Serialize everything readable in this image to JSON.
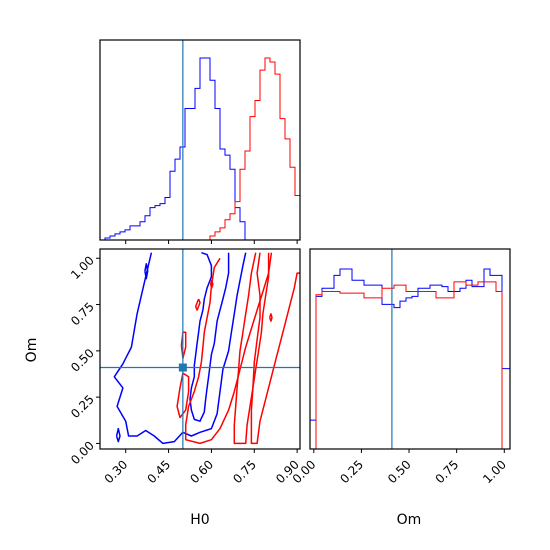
{
  "chart_data": {
    "type": "corner",
    "colors": {
      "sample_1": "#0000ff",
      "sample_2": "#ff0000",
      "truth": "#1f77b4"
    },
    "parameters": [
      "H0",
      "Om"
    ],
    "truths": {
      "H0": 0.5,
      "Om": 0.41
    },
    "h0_axis": {
      "label": "H0",
      "range": [
        0.21,
        0.91
      ],
      "ticks": [
        0.3,
        0.45,
        0.6,
        0.75,
        0.9
      ],
      "tick_labels": [
        "0.30",
        "0.45",
        "0.60",
        "0.75",
        "0.90"
      ]
    },
    "om_axis": {
      "label": "Om",
      "range": [
        -0.03,
        1.05
      ],
      "ticks": [
        0,
        0.25,
        0.5,
        0.75,
        1.0
      ],
      "tick_labels": [
        "0.00",
        "0.25",
        "0.50",
        "0.75",
        "1.00"
      ]
    },
    "om_hist_x_range": [
      -0.02,
      1.03
    ],
    "h0_hist": {
      "bin_edges": [
        0.21,
        0.2275,
        0.245,
        0.2625,
        0.28,
        0.2975,
        0.315,
        0.3325,
        0.35,
        0.3675,
        0.385,
        0.4025,
        0.42,
        0.4375,
        0.455,
        0.4725,
        0.49,
        0.5075,
        0.525,
        0.5425,
        0.56,
        0.5775,
        0.595,
        0.6125,
        0.63,
        0.6475,
        0.665,
        0.6825,
        0.7,
        0.7175,
        0.735,
        0.7525,
        0.77,
        0.7875,
        0.805,
        0.8225,
        0.84,
        0.8575,
        0.875,
        0.8925,
        0.91
      ],
      "series": [
        {
          "values": [
            0,
            1,
            2,
            3,
            4,
            5,
            7,
            7,
            9,
            12,
            16,
            17,
            18,
            21,
            34,
            40,
            46,
            65,
            65,
            75,
            90,
            90,
            79,
            65,
            45,
            42,
            35,
            16,
            9,
            0,
            0,
            0,
            0,
            0,
            0,
            0,
            0,
            0,
            0,
            0
          ]
        },
        {
          "values": [
            0,
            0,
            0,
            0,
            0,
            0,
            0,
            0,
            0,
            0,
            0,
            0,
            0,
            0,
            0,
            0,
            0,
            0,
            0,
            0,
            0,
            0,
            2,
            4,
            6,
            10,
            13,
            19,
            35,
            44,
            61,
            69,
            84,
            90,
            88,
            82,
            60,
            50,
            36,
            22
          ]
        }
      ]
    },
    "om_hist": {
      "bin_edges": [
        -0.02,
        0.0115,
        0.043,
        0.0745,
        0.106,
        0.1375,
        0.169,
        0.2005,
        0.232,
        0.2635,
        0.295,
        0.3265,
        0.358,
        0.3895,
        0.421,
        0.4525,
        0.484,
        0.5155,
        0.547,
        0.5785,
        0.61,
        0.6415,
        0.673,
        0.7045,
        0.736,
        0.7675,
        0.799,
        0.8305,
        0.862,
        0.8935,
        0.925,
        0.9565,
        0.988,
        1.0195,
        1.03
      ],
      "series": [
        {
          "values": [
            18,
            95,
            100,
            100,
            108,
            112,
            112,
            105,
            105,
            102,
            102,
            102,
            90,
            90,
            88,
            92,
            94,
            95,
            100,
            100,
            102,
            102,
            101,
            98,
            98,
            100,
            105,
            101,
            101,
            112,
            108,
            108,
            50,
            50
          ]
        },
        {
          "values": [
            0,
            96,
            98,
            98,
            98,
            97,
            97,
            97,
            97,
            94,
            94,
            94,
            100,
            100,
            102,
            102,
            98,
            98,
            98,
            98,
            98,
            94,
            94,
            94,
            104,
            104,
            102,
            102,
            104,
            104,
            104,
            98,
            0,
            0
          ]
        }
      ]
    },
    "contours": [
      {
        "series": 1,
        "level": "inner",
        "points": [
          [
            0.565,
            1.03
          ],
          [
            0.585,
            1.02
          ],
          [
            0.6,
            0.96
          ],
          [
            0.6,
            0.9
          ],
          [
            0.585,
            0.84
          ],
          [
            0.575,
            0.78
          ],
          [
            0.57,
            0.72
          ],
          [
            0.56,
            0.66
          ],
          [
            0.555,
            0.6
          ],
          [
            0.55,
            0.54
          ],
          [
            0.545,
            0.48
          ],
          [
            0.54,
            0.42
          ],
          [
            0.54,
            0.36
          ],
          [
            0.53,
            0.3
          ],
          [
            0.525,
            0.24
          ],
          [
            0.53,
            0.18
          ],
          [
            0.54,
            0.13
          ],
          [
            0.56,
            0.12
          ],
          [
            0.575,
            0.17
          ],
          [
            0.58,
            0.24
          ],
          [
            0.585,
            0.3
          ],
          [
            0.59,
            0.36
          ],
          [
            0.595,
            0.42
          ],
          [
            0.6,
            0.48
          ],
          [
            0.61,
            0.54
          ],
          [
            0.615,
            0.6
          ],
          [
            0.62,
            0.66
          ],
          [
            0.63,
            0.72
          ],
          [
            0.64,
            0.78
          ],
          [
            0.65,
            0.84
          ],
          [
            0.66,
            0.92
          ],
          [
            0.66,
            1.03
          ]
        ]
      },
      {
        "series": 1,
        "level": "outer",
        "points": [
          [
            0.39,
            1.03
          ],
          [
            0.37,
            0.9
          ],
          [
            0.34,
            0.7
          ],
          [
            0.32,
            0.52
          ],
          [
            0.29,
            0.43
          ],
          [
            0.26,
            0.36
          ],
          [
            0.29,
            0.3
          ],
          [
            0.27,
            0.2
          ],
          [
            0.3,
            0.12
          ],
          [
            0.31,
            0.04
          ],
          [
            0.34,
            0.04
          ],
          [
            0.37,
            0.07
          ],
          [
            0.4,
            0.04
          ],
          [
            0.43,
            0.0
          ],
          [
            0.47,
            0.01
          ],
          [
            0.5,
            0.06
          ],
          [
            0.53,
            0.04
          ],
          [
            0.56,
            0.06
          ],
          [
            0.6,
            0.08
          ],
          [
            0.62,
            0.16
          ],
          [
            0.63,
            0.28
          ],
          [
            0.64,
            0.4
          ],
          [
            0.66,
            0.5
          ],
          [
            0.67,
            0.6
          ],
          [
            0.68,
            0.7
          ],
          [
            0.69,
            0.8
          ],
          [
            0.7,
            0.88
          ],
          [
            0.71,
            0.96
          ],
          [
            0.72,
            1.03
          ]
        ]
      },
      {
        "series": 1,
        "level": "island",
        "points": [
          [
            0.367,
            0.93
          ],
          [
            0.372,
            0.97
          ],
          [
            0.377,
            0.93
          ],
          [
            0.372,
            0.89
          ],
          [
            0.367,
            0.93
          ]
        ]
      },
      {
        "series": 1,
        "level": "island",
        "points": [
          [
            0.268,
            0.04
          ],
          [
            0.274,
            0.08
          ],
          [
            0.28,
            0.04
          ],
          [
            0.274,
            0.01
          ],
          [
            0.268,
            0.04
          ]
        ]
      },
      {
        "series": 2,
        "level": "inner",
        "points": [
          [
            0.755,
            1.03
          ],
          [
            0.74,
            0.92
          ],
          [
            0.73,
            0.8
          ],
          [
            0.72,
            0.7
          ],
          [
            0.71,
            0.6
          ],
          [
            0.7,
            0.5
          ],
          [
            0.695,
            0.4
          ],
          [
            0.69,
            0.3
          ],
          [
            0.685,
            0.2
          ],
          [
            0.68,
            0.1
          ],
          [
            0.68,
            0.0
          ],
          [
            0.72,
            0.0
          ],
          [
            0.725,
            0.1
          ],
          [
            0.735,
            0.2
          ],
          [
            0.745,
            0.3
          ],
          [
            0.755,
            0.4
          ],
          [
            0.765,
            0.5
          ],
          [
            0.775,
            0.6
          ],
          [
            0.78,
            0.7
          ],
          [
            0.79,
            0.8
          ],
          [
            0.8,
            0.9
          ],
          [
            0.8,
            1.03
          ]
        ]
      },
      {
        "series": 2,
        "level": "outer",
        "points": [
          [
            0.63,
            1.0
          ],
          [
            0.61,
            0.95
          ],
          [
            0.6,
            0.85
          ],
          [
            0.595,
            0.76
          ],
          [
            0.585,
            0.68
          ],
          [
            0.575,
            0.6
          ],
          [
            0.57,
            0.52
          ],
          [
            0.565,
            0.44
          ],
          [
            0.555,
            0.36
          ],
          [
            0.54,
            0.28
          ],
          [
            0.52,
            0.2
          ],
          [
            0.51,
            0.1
          ],
          [
            0.51,
            0.02
          ],
          [
            0.56,
            0.0
          ],
          [
            0.6,
            0.02
          ],
          [
            0.63,
            0.08
          ],
          [
            0.66,
            0.18
          ],
          [
            0.68,
            0.28
          ],
          [
            0.7,
            0.4
          ],
          [
            0.72,
            0.52
          ],
          [
            0.74,
            0.62
          ],
          [
            0.76,
            0.72
          ],
          [
            0.78,
            0.82
          ],
          [
            0.8,
            0.92
          ],
          [
            0.81,
            1.03
          ]
        ]
      },
      {
        "series": 2,
        "level": "outer",
        "points": [
          [
            0.77,
            1.03
          ],
          [
            0.76,
            0.92
          ],
          [
            0.77,
            0.8
          ],
          [
            0.77,
            0.68
          ],
          [
            0.76,
            0.56
          ],
          [
            0.75,
            0.44
          ],
          [
            0.745,
            0.3
          ],
          [
            0.74,
            0.18
          ],
          [
            0.74,
            0.0
          ],
          [
            0.76,
            0.0
          ],
          [
            0.77,
            0.12
          ],
          [
            0.79,
            0.24
          ],
          [
            0.81,
            0.36
          ],
          [
            0.83,
            0.48
          ],
          [
            0.85,
            0.6
          ],
          [
            0.87,
            0.72
          ],
          [
            0.89,
            0.84
          ],
          [
            0.9,
            0.92
          ],
          [
            0.91,
            0.92
          ]
        ]
      },
      {
        "series": 2,
        "level": "island",
        "points": [
          [
            0.5,
            0.38
          ],
          [
            0.49,
            0.3
          ],
          [
            0.48,
            0.2
          ],
          [
            0.49,
            0.14
          ],
          [
            0.51,
            0.18
          ],
          [
            0.52,
            0.28
          ],
          [
            0.52,
            0.36
          ],
          [
            0.5,
            0.38
          ]
        ]
      },
      {
        "series": 2,
        "level": "island",
        "points": [
          [
            0.5,
            0.6
          ],
          [
            0.495,
            0.53
          ],
          [
            0.5,
            0.46
          ],
          [
            0.51,
            0.52
          ],
          [
            0.51,
            0.6
          ],
          [
            0.5,
            0.6
          ]
        ]
      },
      {
        "series": 2,
        "level": "island",
        "points": [
          [
            0.555,
            0.78
          ],
          [
            0.545,
            0.74
          ],
          [
            0.55,
            0.72
          ],
          [
            0.56,
            0.76
          ],
          [
            0.555,
            0.78
          ]
        ]
      },
      {
        "series": 2,
        "level": "island",
        "points": [
          [
            0.597,
            0.86
          ],
          [
            0.601,
            0.88
          ],
          [
            0.605,
            0.86
          ],
          [
            0.601,
            0.84
          ],
          [
            0.597,
            0.86
          ]
        ]
      },
      {
        "series": 2,
        "level": "island",
        "points": [
          [
            0.804,
            0.68
          ],
          [
            0.808,
            0.7
          ],
          [
            0.812,
            0.68
          ],
          [
            0.808,
            0.66
          ],
          [
            0.804,
            0.68
          ]
        ]
      }
    ]
  }
}
